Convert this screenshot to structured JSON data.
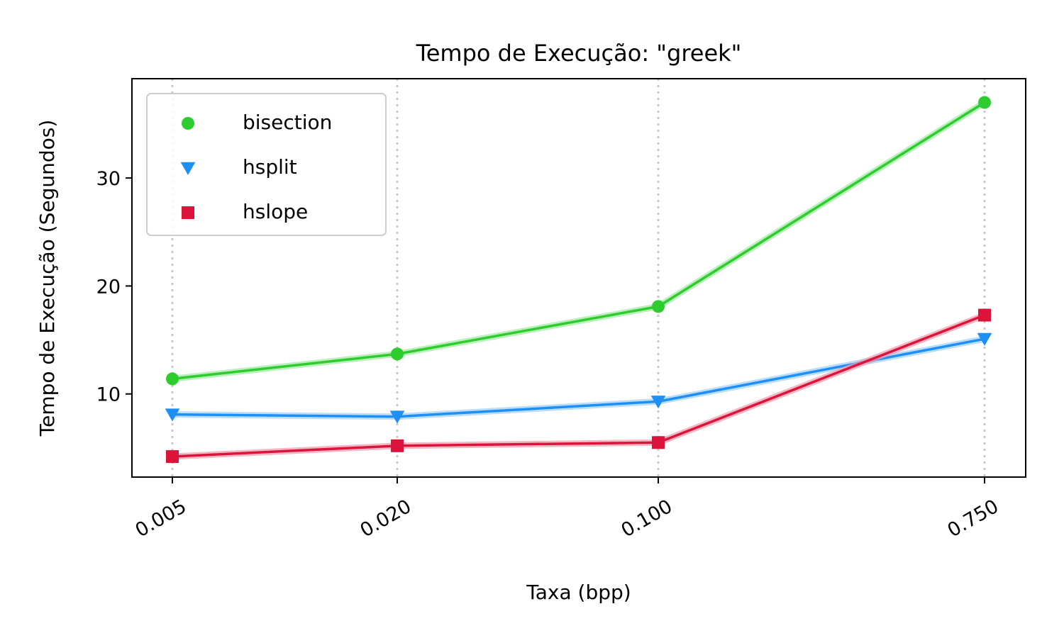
{
  "chart_data": {
    "type": "line",
    "title": "Tempo de Execução: \"greek\"",
    "xlabel": "Taxa (bpp)",
    "ylabel": "Tempo de Execução (Segundos)",
    "x_scale": "log",
    "x": [
      0.005,
      0.02,
      0.1,
      0.75
    ],
    "x_tick_labels": [
      "0.005",
      "0.020",
      "0.100",
      "0.750"
    ],
    "y_ticks": [
      10,
      20,
      30
    ],
    "ylim": [
      2.3,
      39.2
    ],
    "grid": "vertical dotted at x ticks",
    "legend_position": "top-left",
    "series": [
      {
        "name": "bisection",
        "marker": "circle",
        "color": "#2ecc2e",
        "band_color": "#9ee89e",
        "values": [
          11.4,
          13.7,
          18.1,
          37.0
        ]
      },
      {
        "name": "hsplit",
        "marker": "triangle-down",
        "color": "#1e8ff5",
        "band_color": "#9ccff9",
        "values": [
          8.1,
          7.9,
          9.3,
          15.1
        ]
      },
      {
        "name": "hslope",
        "marker": "square",
        "color": "#dc143c",
        "band_color": "#f09aab",
        "values": [
          4.2,
          5.2,
          5.5,
          17.3
        ]
      }
    ]
  }
}
